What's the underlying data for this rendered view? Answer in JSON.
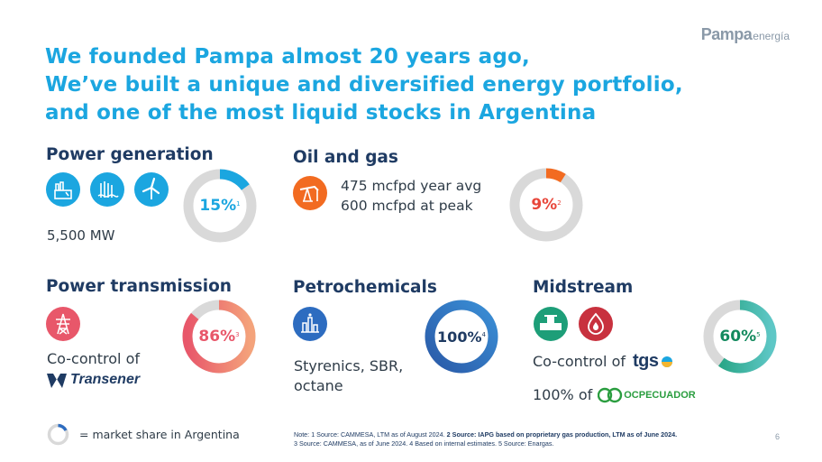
{
  "logo": {
    "brand": "Pampa",
    "sub": "energía"
  },
  "headline": {
    "line1": "We founded Pampa almost 20 years ago,",
    "line2": "We’ve built a unique and diversified energy portfolio,",
    "line3": "and one of the most liquid stocks in Argentina"
  },
  "power_generation": {
    "title": "Power generation",
    "capacity": "5,500 MW",
    "share": "15%",
    "note": "1",
    "share_value": 15,
    "icons": [
      "thermal-plant-icon",
      "hydro-dam-icon",
      "wind-turbine-icon"
    ]
  },
  "oil_gas": {
    "title": "Oil and gas",
    "line1": "475 mcfpd year avg",
    "line2": "600 mcfpd at peak",
    "share": "9%",
    "note": "2",
    "share_value": 9,
    "icons": [
      "oil-pump-icon"
    ]
  },
  "power_transmission": {
    "title": "Power transmission",
    "control_label": "Co-control of",
    "partner": "Transener",
    "share": "86%",
    "note": "3",
    "share_value": 86,
    "icons": [
      "transmission-tower-icon"
    ]
  },
  "petrochemicals": {
    "title": "Petrochemicals",
    "line1": "Styrenics, SBR,",
    "line2": "octane",
    "share": "100%",
    "note": "4",
    "share_value": 100,
    "icons": [
      "petrochemical-plant-icon"
    ]
  },
  "midstream": {
    "title": "Midstream",
    "control_label": "Co-control of",
    "partner1": "tgs",
    "ownership_label": "100% of",
    "partner2": "OCPECUADOR",
    "share": "60%",
    "note": "5",
    "share_value": 60,
    "icons": [
      "pipeline-valve-icon",
      "gas-flame-icon"
    ]
  },
  "legend": {
    "text": "= market share in Argentina"
  },
  "notes": {
    "label": "Note:",
    "n1": "1 Source: CAMMESA, LTM as of August 2024.",
    "n2": "2 Source: IAPG based on proprietary gas production, LTM as of June 2024.",
    "n3": "3 Source: CAMMESA, as of June 2024.",
    "n4": "4 Based on internal estimates.",
    "n5": "5 Source: Enargas."
  },
  "page_number": "6",
  "colors": {
    "headline": "#1ba6e0",
    "title": "#1f3b63",
    "power_generation": "#1ba6e0",
    "oil_gas": "#f26b21",
    "power_transmission": "#e8576a",
    "petrochemicals": "#2d6cc0",
    "midstream": "#1d9e78",
    "midstream_flame": "#c8313e",
    "donut_track": "#d9d9d9"
  }
}
